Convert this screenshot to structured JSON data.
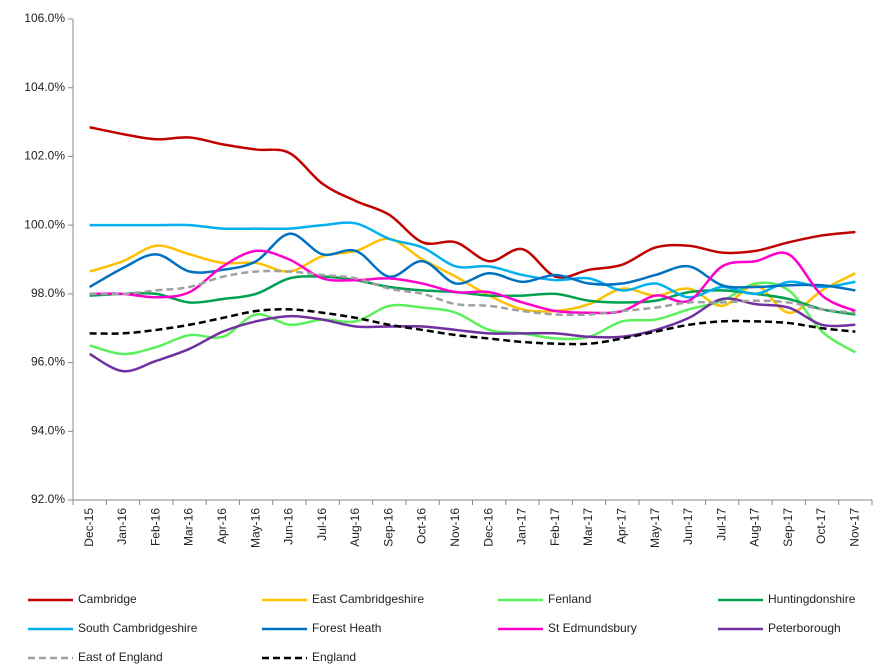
{
  "chart_data": {
    "type": "line",
    "categories": [
      "Dec-15",
      "Jan-16",
      "Feb-16",
      "Mar-16",
      "Apr-16",
      "May-16",
      "Jun-16",
      "Jul-16",
      "Aug-16",
      "Sep-16",
      "Oct-16",
      "Nov-16",
      "Dec-16",
      "Jan-17",
      "Feb-17",
      "Mar-17",
      "Apr-17",
      "May-17",
      "Jun-17",
      "Jul-17",
      "Aug-17",
      "Sep-17",
      "Oct-17",
      "Nov-17"
    ],
    "ylim": [
      92,
      106
    ],
    "yticks": [
      {
        "value": 92,
        "label": "92.0%"
      },
      {
        "value": 94,
        "label": "94.0%"
      },
      {
        "value": 96,
        "label": "96.0%"
      },
      {
        "value": 98,
        "label": "98.0%"
      },
      {
        "value": 100,
        "label": "100.0%"
      },
      {
        "value": 102,
        "label": "102.0%"
      },
      {
        "value": 104,
        "label": "104.0%"
      },
      {
        "value": 106,
        "label": "106.0%"
      }
    ],
    "grid": false,
    "series": [
      {
        "name": "Cambridge",
        "color": "#c00000",
        "style": "solid",
        "values": [
          102.85,
          102.65,
          102.5,
          102.55,
          102.35,
          102.2,
          102.1,
          101.2,
          100.7,
          100.3,
          99.5,
          99.5,
          98.95,
          99.3,
          98.5,
          98.7,
          98.85,
          99.35,
          99.4,
          99.2,
          99.25,
          99.5,
          99.7,
          99.8
        ]
      },
      {
        "name": "East Cambridgeshire",
        "color": "#ffc000",
        "style": "solid",
        "values": [
          98.65,
          98.95,
          99.4,
          99.15,
          98.9,
          98.9,
          98.65,
          99.1,
          99.25,
          99.6,
          99.0,
          98.5,
          97.95,
          97.55,
          97.5,
          97.7,
          98.15,
          97.95,
          98.15,
          97.65,
          98.25,
          97.45,
          98.1,
          98.6
        ]
      },
      {
        "name": "Fenland",
        "color": "#5cf05c",
        "style": "solid",
        "values": [
          96.5,
          96.25,
          96.45,
          96.8,
          96.75,
          97.4,
          97.1,
          97.25,
          97.2,
          97.65,
          97.6,
          97.45,
          96.95,
          96.85,
          96.7,
          96.75,
          97.2,
          97.25,
          97.55,
          97.8,
          98.3,
          98.1,
          96.9,
          96.3
        ]
      },
      {
        "name": "Huntingdonshire",
        "color": "#00a050",
        "style": "solid",
        "values": [
          97.95,
          98.0,
          98.0,
          97.75,
          97.85,
          98.0,
          98.45,
          98.5,
          98.4,
          98.2,
          98.1,
          98.05,
          97.95,
          97.95,
          98.0,
          97.8,
          97.75,
          97.8,
          98.05,
          98.1,
          98.0,
          97.85,
          97.55,
          97.4
        ]
      },
      {
        "name": "South Cambridgeshire",
        "color": "#00b0f0",
        "style": "solid",
        "values": [
          100.0,
          100.0,
          100.0,
          100.0,
          99.9,
          99.9,
          99.9,
          100.0,
          100.05,
          99.6,
          99.35,
          98.8,
          98.8,
          98.55,
          98.4,
          98.45,
          98.1,
          98.3,
          97.9,
          98.2,
          98.0,
          98.35,
          98.2,
          98.35
        ]
      },
      {
        "name": "Forest Heath",
        "color": "#0070c0",
        "style": "solid",
        "values": [
          98.2,
          98.75,
          99.15,
          98.65,
          98.7,
          98.95,
          99.75,
          99.15,
          99.25,
          98.5,
          98.95,
          98.3,
          98.6,
          98.35,
          98.55,
          98.3,
          98.3,
          98.55,
          98.8,
          98.25,
          98.2,
          98.25,
          98.25,
          98.1
        ]
      },
      {
        "name": "St Edmundsbury",
        "color": "#ff00cc",
        "style": "solid",
        "values": [
          98.0,
          98.0,
          97.9,
          98.05,
          98.8,
          99.25,
          99.0,
          98.45,
          98.4,
          98.45,
          98.3,
          98.05,
          98.05,
          97.75,
          97.5,
          97.45,
          97.5,
          97.95,
          97.8,
          98.8,
          98.95,
          99.15,
          97.95,
          97.5
        ]
      },
      {
        "name": "Peterborough",
        "color": "#7030a0",
        "style": "solid",
        "values": [
          96.25,
          95.75,
          96.05,
          96.4,
          96.9,
          97.2,
          97.35,
          97.25,
          97.05,
          97.05,
          97.05,
          96.95,
          96.85,
          96.85,
          96.85,
          96.75,
          96.75,
          96.95,
          97.3,
          97.85,
          97.7,
          97.6,
          97.1,
          97.1
        ]
      },
      {
        "name": "East of England",
        "color": "#a0a0a0",
        "style": "dashed",
        "values": [
          98.0,
          98.0,
          98.1,
          98.2,
          98.5,
          98.65,
          98.65,
          98.55,
          98.45,
          98.15,
          98.0,
          97.7,
          97.65,
          97.5,
          97.4,
          97.4,
          97.5,
          97.6,
          97.75,
          97.75,
          97.8,
          97.75,
          97.55,
          97.45
        ]
      },
      {
        "name": "England",
        "color": "#000000",
        "style": "dashed",
        "values": [
          96.85,
          96.85,
          96.95,
          97.1,
          97.3,
          97.5,
          97.55,
          97.45,
          97.3,
          97.1,
          96.95,
          96.8,
          96.7,
          96.6,
          96.55,
          96.55,
          96.7,
          96.9,
          97.1,
          97.2,
          97.2,
          97.15,
          97.0,
          96.9
        ]
      }
    ]
  }
}
